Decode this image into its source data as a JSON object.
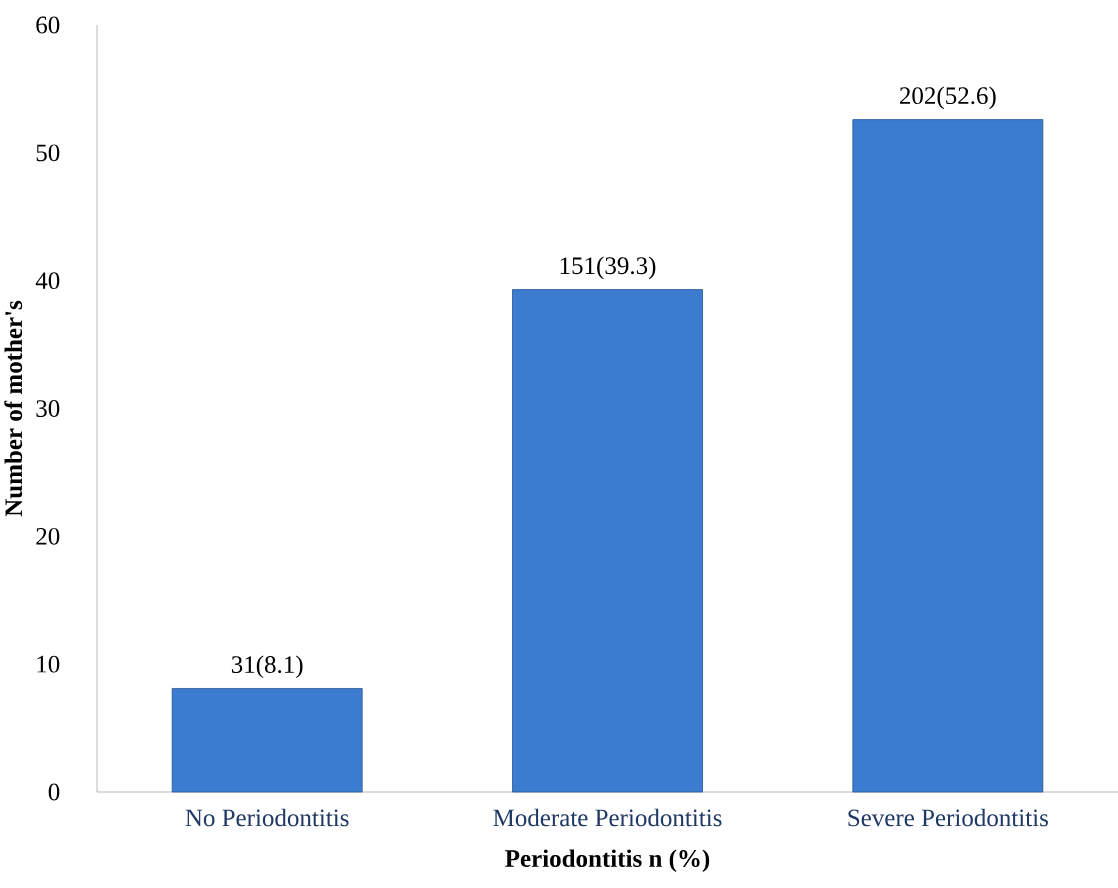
{
  "chart_data": {
    "type": "bar",
    "xlabel": "Periodontitis n (%)",
    "ylabel": "Number of mother's",
    "categories": [
      "No Periodontitis",
      "Moderate Periodontitis",
      "Severe Periodontitis"
    ],
    "values": [
      8.1,
      39.3,
      52.6
    ],
    "value_labels": [
      "31(8.1)",
      "151(39.3)",
      "202(52.6)"
    ],
    "color": "#3b7bd0",
    "ylim": [
      0,
      60
    ],
    "yticks": [
      0,
      10,
      20,
      30,
      40,
      50,
      60
    ]
  }
}
